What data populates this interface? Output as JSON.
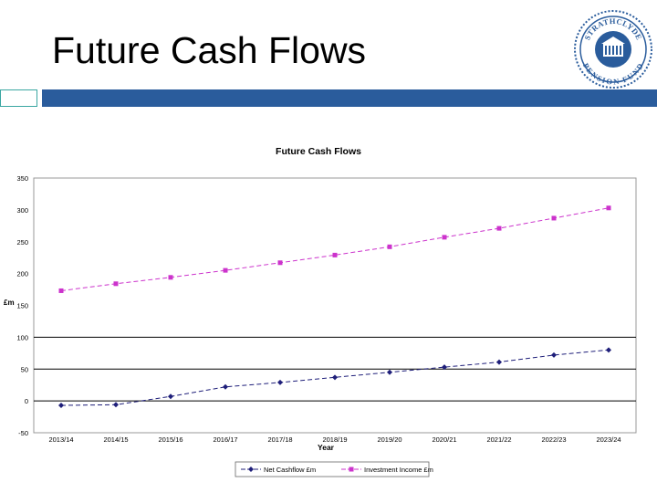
{
  "slide": {
    "title": "Future Cash Flows",
    "accent_color": "#2a5c9c",
    "teal_color": "#3aa6a2"
  },
  "logo": {
    "top_text": "STRATHCLYDE",
    "bottom_text": "PENSION FUND",
    "color": "#2a5c9c"
  },
  "chart_data": {
    "type": "line",
    "title": "Future Cash Flows",
    "xlabel": "Year",
    "ylabel": "£m",
    "categories": [
      "2013/14",
      "2014/15",
      "2015/16",
      "2016/17",
      "2017/18",
      "2018/19",
      "2019/20",
      "2020/21",
      "2021/22",
      "2022/23",
      "2023/24"
    ],
    "ylim": [
      -50,
      350
    ],
    "yticks": [
      -50,
      0,
      50,
      100,
      150,
      200,
      250,
      300,
      350
    ],
    "ytick_labels": [
      "-50",
      "0",
      "50",
      "100",
      "150",
      "200",
      "250",
      "300",
      "350"
    ],
    "reference_lines": [
      0,
      50,
      100
    ],
    "series": [
      {
        "name": "Net Cashflow £m",
        "color": "#1f1f7a",
        "marker": "diamond",
        "values": [
          -7,
          -6,
          7,
          22,
          29,
          37,
          45,
          53,
          61,
          72,
          80
        ]
      },
      {
        "name": "Investment Income £m",
        "color": "#cc33cc",
        "marker": "square",
        "values": [
          173,
          184,
          194,
          205,
          217,
          229,
          242,
          257,
          271,
          287,
          303
        ]
      }
    ],
    "legend_position": "bottom"
  }
}
